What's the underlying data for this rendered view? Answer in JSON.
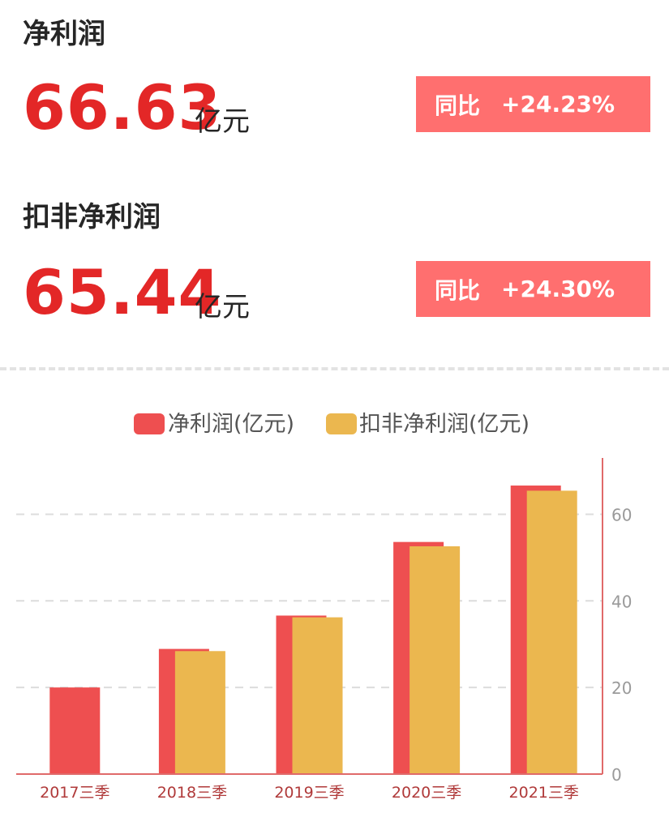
{
  "metrics": [
    {
      "title": "净利润",
      "value": "66.63",
      "unit": "亿元",
      "yoy_label": "同比",
      "yoy_value": "+24.23%"
    },
    {
      "title": "扣非净利润",
      "value": "65.44",
      "unit": "亿元",
      "yoy_label": "同比",
      "yoy_value": "+24.30%"
    }
  ],
  "chart_data": {
    "type": "bar",
    "categories": [
      "2017三季",
      "2018三季",
      "2019三季",
      "2020三季",
      "2021三季"
    ],
    "series": [
      {
        "name": "净利润(亿元)",
        "values": [
          20.0,
          28.9,
          36.6,
          53.6,
          66.63
        ],
        "color": "#ee4f50"
      },
      {
        "name": "扣非净利润(亿元)",
        "values": [
          null,
          28.4,
          36.2,
          52.6,
          65.44
        ],
        "color": "#ebb74f"
      }
    ],
    "yticks": [
      0,
      20,
      40,
      60
    ],
    "ylim": [
      0,
      73
    ],
    "yaxis_position": "right",
    "grid": true,
    "legend": "top-center",
    "axis_color": "#e06a6a",
    "grid_color": "#dcdcdc",
    "tick_label_color": "#9a9a9a",
    "category_label_color": "#b03a3a",
    "legend_text_color": "#555555"
  }
}
